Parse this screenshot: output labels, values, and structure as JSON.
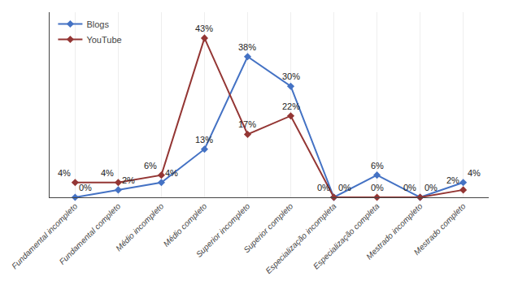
{
  "chart_data": {
    "type": "line",
    "categories": [
      "Fundamental incompleto",
      "Fundamental completo",
      "Médio incompleto",
      "Médio completo",
      "Superior incompleto",
      "Superior completo",
      "Especialização incompleta",
      "Especialização completa",
      "Mestrado incompleto",
      "Mestrado completo"
    ],
    "series": [
      {
        "name": "Blogs",
        "color": "#4472C4",
        "marker": "diamond",
        "values": [
          0,
          2,
          4,
          13,
          38,
          30,
          0,
          6,
          0,
          4
        ],
        "value_labels": [
          "0%",
          "2%",
          "4%",
          "13%",
          "38%",
          "30%",
          "0%",
          "6%",
          "0%",
          "4%"
        ]
      },
      {
        "name": "YouTube",
        "color": "#943634",
        "marker": "diamond",
        "values": [
          4,
          4,
          6,
          43,
          17,
          22,
          0,
          0,
          0,
          2
        ],
        "value_labels": [
          "4%",
          "4%",
          "6%",
          "43%",
          "17%",
          "22%",
          "0%",
          "0%",
          "0%",
          "2%"
        ]
      }
    ],
    "ylim": [
      0,
      50
    ],
    "tick_labels": "x",
    "grid": true,
    "legend": "upper left",
    "data_labels": true
  }
}
